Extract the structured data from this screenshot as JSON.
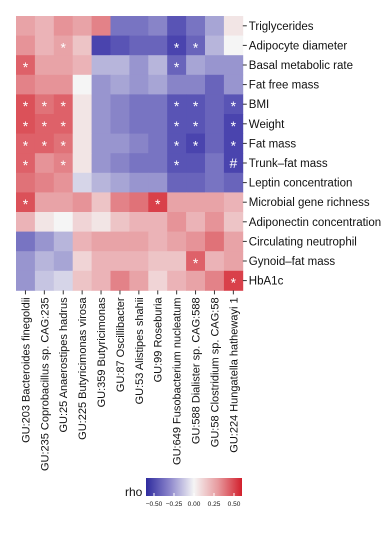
{
  "chart_data": {
    "type": "heatmap",
    "x_labels": [
      "GU:203 Bacteroides finegoldii",
      "GU:235 Coprobacillus sp. CAG:235",
      "GU:25 Anaerostipes hadrus",
      "GU:225 Butyricimonas virosa",
      "GU:359 Butyricimonas",
      "GU:87 Oscillibacter",
      "GU:53 Alistipes shahii",
      "GU:99 Roseburia",
      "GU:649 Fusobacterium nucleatum",
      "GU:588 Dialister sp. CAG:588",
      "GU:58 Clostridium sp. CAG:58",
      "GU:224 Hungatella hathewayi 1"
    ],
    "y_labels": [
      "Triglycerides",
      "Adipocyte diameter",
      "Basal metabolic rate",
      "Fat  free mass",
      "BMI",
      "Weight",
      "Fat mass",
      "Trunk–fat mass",
      "Leptin concentration",
      "Microbial gene richness",
      "Adiponectin concentration",
      "Circulating neutrophil",
      "Gynoid–fat mass",
      "HbA1c"
    ],
    "values": [
      [
        0.25,
        0.2,
        0.3,
        0.25,
        0.35,
        -0.4,
        -0.4,
        -0.35,
        -0.5,
        -0.4,
        -0.25,
        0.05
      ],
      [
        0.3,
        0.2,
        0.25,
        0.15,
        -0.55,
        -0.5,
        -0.45,
        -0.45,
        -0.55,
        -0.45,
        -0.2,
        0.0
      ],
      [
        0.45,
        0.25,
        0.25,
        0.2,
        -0.2,
        -0.2,
        -0.3,
        -0.2,
        -0.45,
        -0.25,
        -0.3,
        -0.3
      ],
      [
        0.35,
        0.3,
        0.3,
        0.0,
        -0.3,
        -0.25,
        -0.3,
        -0.25,
        -0.35,
        -0.35,
        -0.45,
        -0.3
      ],
      [
        0.5,
        0.4,
        0.45,
        0.05,
        -0.3,
        -0.35,
        -0.4,
        -0.4,
        -0.5,
        -0.5,
        -0.45,
        -0.5
      ],
      [
        0.5,
        0.45,
        0.45,
        0.05,
        -0.3,
        -0.35,
        -0.4,
        -0.4,
        -0.5,
        -0.5,
        -0.45,
        -0.55
      ],
      [
        0.45,
        0.45,
        0.4,
        0.05,
        -0.3,
        -0.3,
        -0.35,
        -0.4,
        -0.5,
        -0.55,
        -0.45,
        -0.55
      ],
      [
        0.45,
        0.3,
        0.35,
        0.05,
        -0.3,
        -0.35,
        -0.4,
        -0.4,
        -0.5,
        -0.5,
        -0.4,
        -0.55
      ],
      [
        0.4,
        0.35,
        0.3,
        -0.1,
        -0.2,
        -0.25,
        -0.3,
        -0.3,
        -0.45,
        -0.45,
        -0.4,
        -0.45
      ],
      [
        0.5,
        0.25,
        0.25,
        0.3,
        0.15,
        0.35,
        0.4,
        0.55,
        0.25,
        0.25,
        0.25,
        0.2
      ],
      [
        0.2,
        0.05,
        0.0,
        0.1,
        0.05,
        0.15,
        0.2,
        0.2,
        0.3,
        0.2,
        0.3,
        0.15
      ],
      [
        -0.4,
        -0.3,
        -0.2,
        0.2,
        0.25,
        0.25,
        0.25,
        0.2,
        0.25,
        0.3,
        0.4,
        0.25
      ],
      [
        -0.3,
        -0.2,
        -0.25,
        0.1,
        0.2,
        0.2,
        0.2,
        0.15,
        0.15,
        0.45,
        0.2,
        0.25
      ],
      [
        -0.3,
        -0.15,
        -0.1,
        0.15,
        0.2,
        0.35,
        0.25,
        0.1,
        0.2,
        0.25,
        0.35,
        0.55
      ]
    ],
    "annotations": [
      {
        "row": 1,
        "col": 2,
        "text": "*"
      },
      {
        "row": 1,
        "col": 8,
        "text": "*"
      },
      {
        "row": 1,
        "col": 9,
        "text": "*"
      },
      {
        "row": 2,
        "col": 0,
        "text": "*"
      },
      {
        "row": 2,
        "col": 8,
        "text": "*"
      },
      {
        "row": 4,
        "col": 0,
        "text": "*"
      },
      {
        "row": 4,
        "col": 1,
        "text": "*"
      },
      {
        "row": 4,
        "col": 2,
        "text": "*"
      },
      {
        "row": 4,
        "col": 8,
        "text": "*"
      },
      {
        "row": 4,
        "col": 9,
        "text": "*"
      },
      {
        "row": 4,
        "col": 11,
        "text": "*"
      },
      {
        "row": 5,
        "col": 0,
        "text": "*"
      },
      {
        "row": 5,
        "col": 1,
        "text": "*"
      },
      {
        "row": 5,
        "col": 2,
        "text": "*"
      },
      {
        "row": 5,
        "col": 8,
        "text": "*"
      },
      {
        "row": 5,
        "col": 9,
        "text": "*"
      },
      {
        "row": 5,
        "col": 11,
        "text": "*"
      },
      {
        "row": 6,
        "col": 0,
        "text": "*"
      },
      {
        "row": 6,
        "col": 1,
        "text": "*"
      },
      {
        "row": 6,
        "col": 2,
        "text": "*"
      },
      {
        "row": 6,
        "col": 8,
        "text": "*"
      },
      {
        "row": 6,
        "col": 9,
        "text": "*"
      },
      {
        "row": 6,
        "col": 11,
        "text": "*"
      },
      {
        "row": 7,
        "col": 0,
        "text": "*"
      },
      {
        "row": 7,
        "col": 2,
        "text": "*"
      },
      {
        "row": 7,
        "col": 8,
        "text": "*"
      },
      {
        "row": 7,
        "col": 11,
        "text": "#"
      },
      {
        "row": 9,
        "col": 0,
        "text": "*"
      },
      {
        "row": 9,
        "col": 7,
        "text": "*"
      },
      {
        "row": 12,
        "col": 9,
        "text": "*"
      },
      {
        "row": 13,
        "col": 11,
        "text": "*"
      }
    ],
    "legend": {
      "title": "rho",
      "ticks": [
        -0.5,
        -0.25,
        0.0,
        0.25,
        0.5
      ],
      "tick_labels": [
        "−0.50",
        "−0.25",
        "0.00",
        "0.25",
        "0.50"
      ],
      "range": [
        -0.6,
        0.6
      ],
      "placement": "bottom"
    },
    "colors": {
      "negative": "#3a34a8",
      "zero": "#f5f5f5",
      "positive": "#d6303a"
    }
  }
}
